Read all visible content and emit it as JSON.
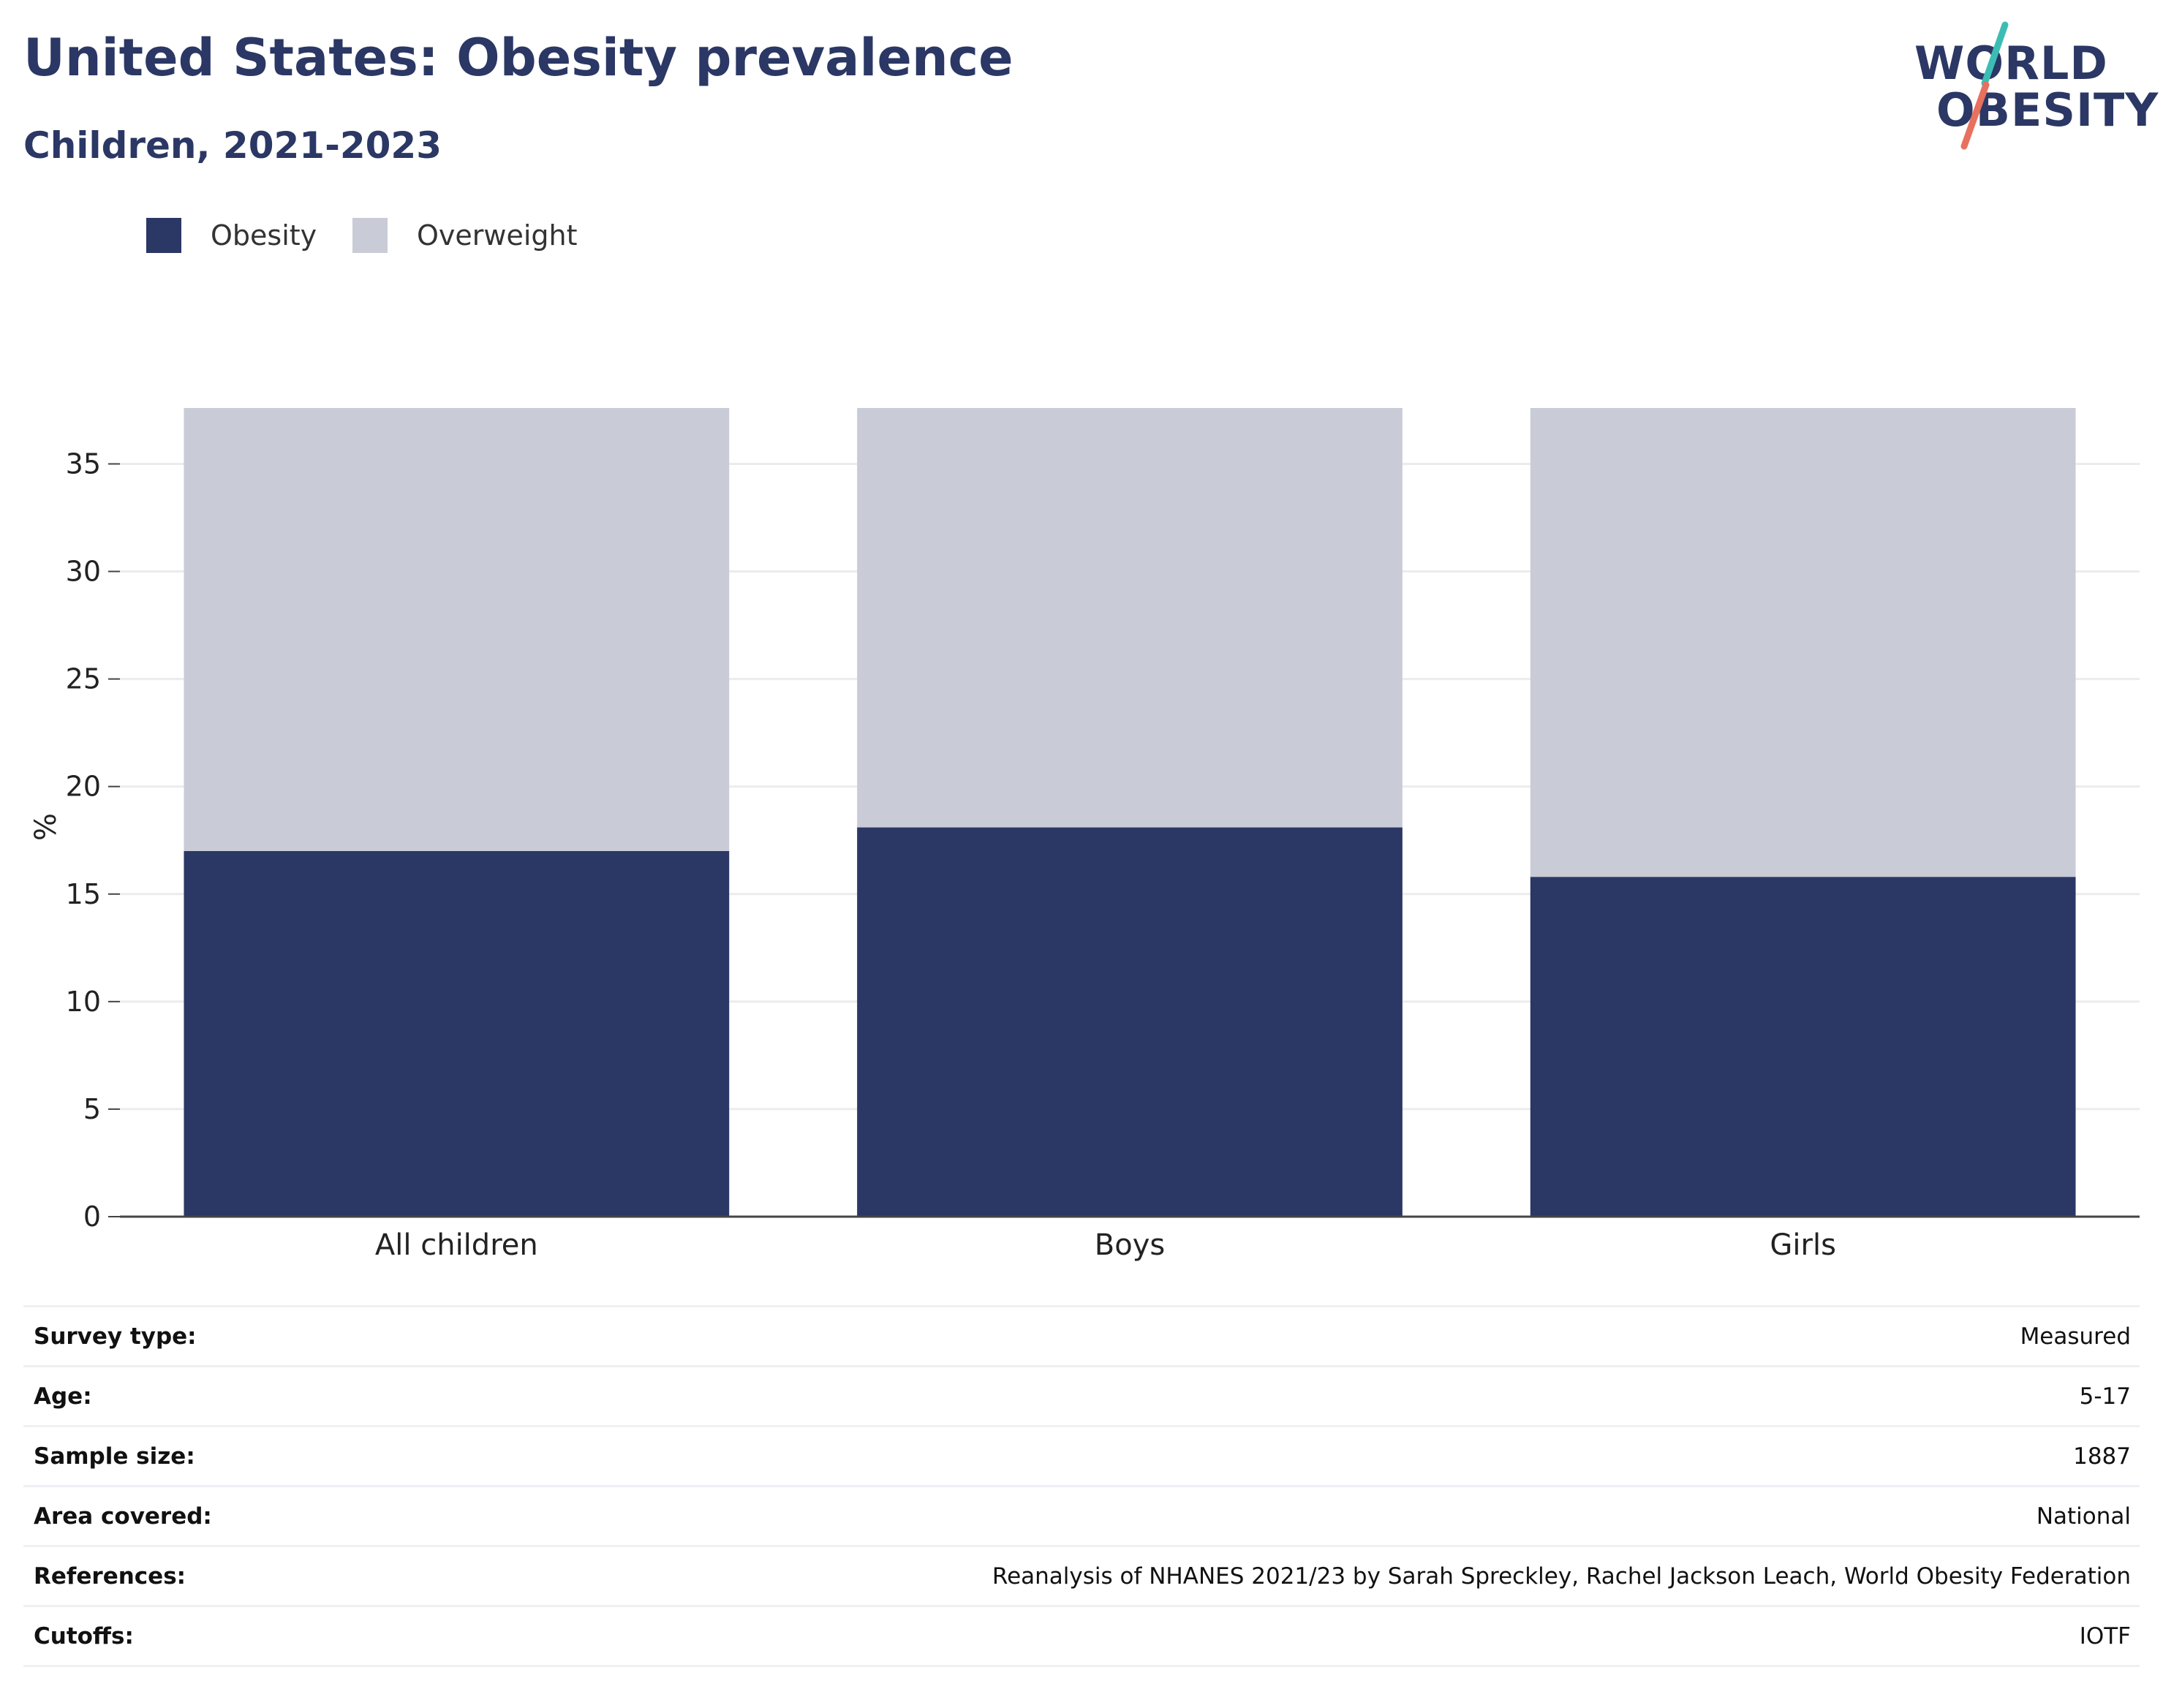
{
  "header": {
    "title": "United States: Obesity prevalence",
    "subtitle": "Children, 2021-2023"
  },
  "logo": {
    "line1": "WORLD",
    "line2": "OBESITY",
    "accent_teal": "#3cbdb4",
    "accent_coral": "#e8705e"
  },
  "legend": [
    {
      "label": "Obesity",
      "color": "#2b3764"
    },
    {
      "label": "Overweight",
      "color": "#c9ccd7"
    }
  ],
  "chart_data": {
    "type": "bar",
    "stacked": true,
    "categories": [
      "All children",
      "Boys",
      "Girls"
    ],
    "series": [
      {
        "name": "Obesity",
        "values": [
          17.0,
          18.1,
          15.8
        ],
        "color": "#2b3764"
      },
      {
        "name": "Overweight",
        "values": [
          20.6,
          19.5,
          21.8
        ],
        "color": "#c9ccd7"
      }
    ],
    "ylabel": "%",
    "ylim": [
      0,
      37.6
    ],
    "yticks": [
      0,
      5,
      10,
      15,
      20,
      25,
      30,
      35
    ],
    "grid": true,
    "legend_position": "top-left"
  },
  "info": [
    {
      "label": "Survey type:",
      "value": "Measured"
    },
    {
      "label": "Age:",
      "value": "5-17"
    },
    {
      "label": "Sample size:",
      "value": "1887"
    },
    {
      "label": "Area covered:",
      "value": "National"
    },
    {
      "label": "References:",
      "value": "Reanalysis of NHANES 2021/23 by Sarah Spreckley, Rachel Jackson Leach, World Obesity Federation"
    },
    {
      "label": "Cutoffs:",
      "value": "IOTF"
    }
  ]
}
